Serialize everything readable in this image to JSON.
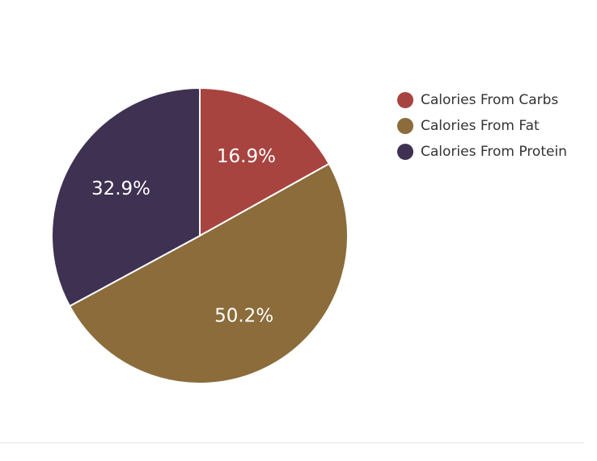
{
  "chart_data": {
    "type": "pie",
    "categories": [
      "Calories From Carbs",
      "Calories From Fat",
      "Calories From Protein"
    ],
    "values": [
      16.9,
      50.2,
      32.9
    ],
    "labels": [
      "16.9%",
      "50.2%",
      "32.9%"
    ],
    "colors": [
      "#a84440",
      "#8b6c3a",
      "#3e3152"
    ],
    "legend_position": "top-right"
  }
}
